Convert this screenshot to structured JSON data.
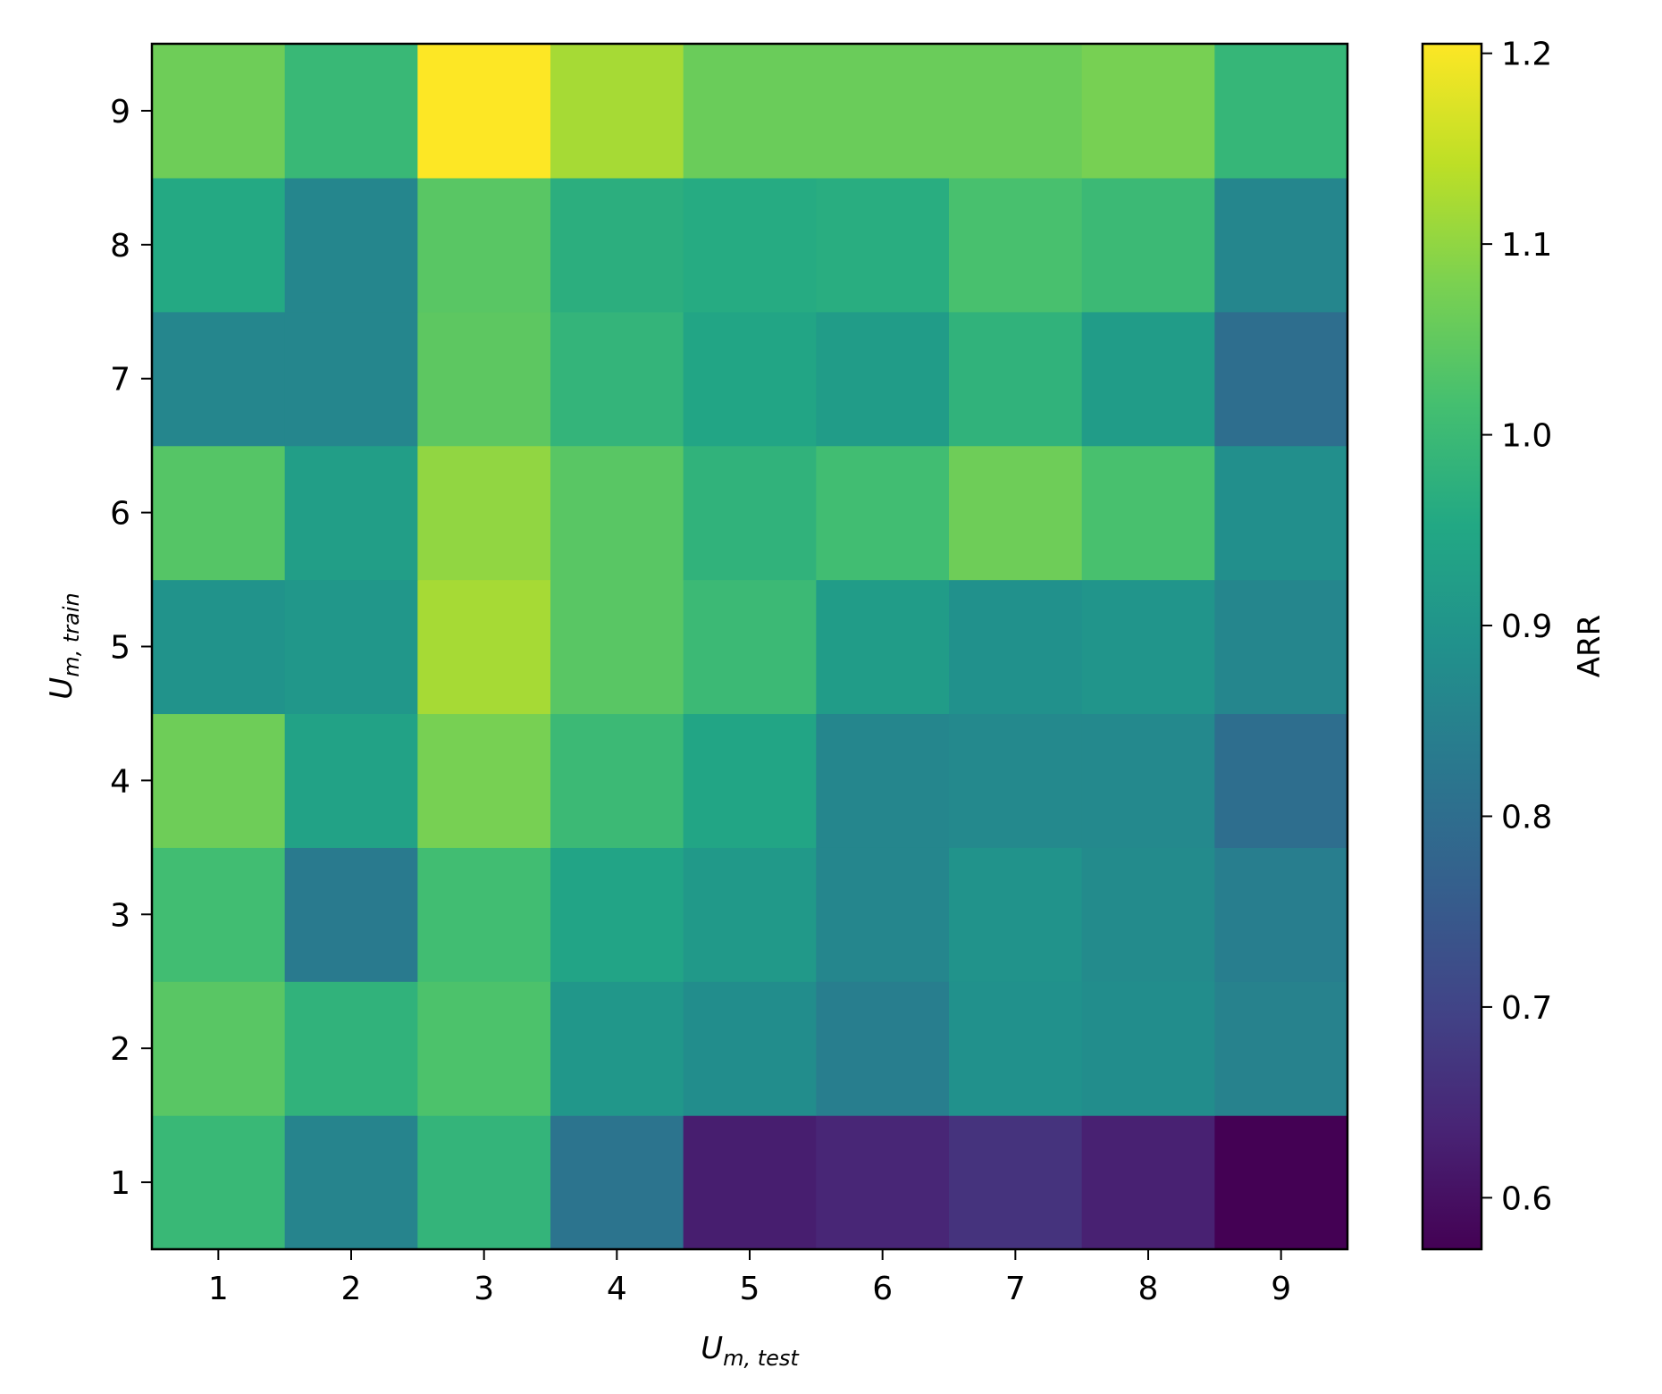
{
  "chart_data": {
    "type": "heatmap",
    "x_categories": [
      1,
      2,
      3,
      4,
      5,
      6,
      7,
      8,
      9
    ],
    "y_categories": [
      1,
      2,
      3,
      4,
      5,
      6,
      7,
      8,
      9
    ],
    "xlabel_main": "U",
    "xlabel_sub": "m, test",
    "ylabel_main": "U",
    "ylabel_sub": "m, train",
    "colorbar_label": "ARR",
    "colormap": "viridis",
    "vmin": 0.573,
    "vmax": 1.205,
    "colorbar_ticks": [
      "0.6",
      "0.7",
      "0.8",
      "0.9",
      "1.0",
      "1.1",
      "1.2"
    ],
    "values": [
      [
        0.995,
        0.855,
        0.985,
        0.815,
        0.625,
        0.64,
        0.665,
        0.63,
        0.573
      ],
      [
        1.04,
        0.98,
        1.025,
        0.905,
        0.88,
        0.84,
        0.89,
        0.88,
        0.85
      ],
      [
        1.01,
        0.83,
        1.01,
        0.94,
        0.91,
        0.86,
        0.895,
        0.875,
        0.84
      ],
      [
        1.065,
        0.935,
        1.075,
        1.0,
        0.945,
        0.86,
        0.87,
        0.87,
        0.8
      ],
      [
        0.895,
        0.905,
        1.12,
        1.04,
        1.0,
        0.92,
        0.89,
        0.9,
        0.86
      ],
      [
        1.035,
        0.925,
        1.1,
        1.04,
        0.98,
        1.01,
        1.065,
        1.02,
        0.885
      ],
      [
        0.86,
        0.86,
        1.045,
        0.985,
        0.945,
        0.92,
        0.98,
        0.92,
        0.8
      ],
      [
        0.955,
        0.86,
        1.04,
        0.97,
        0.96,
        0.965,
        1.02,
        1.0,
        0.86
      ],
      [
        1.065,
        0.995,
        1.205,
        1.12,
        1.06,
        1.06,
        1.06,
        1.075,
        0.99
      ]
    ]
  }
}
